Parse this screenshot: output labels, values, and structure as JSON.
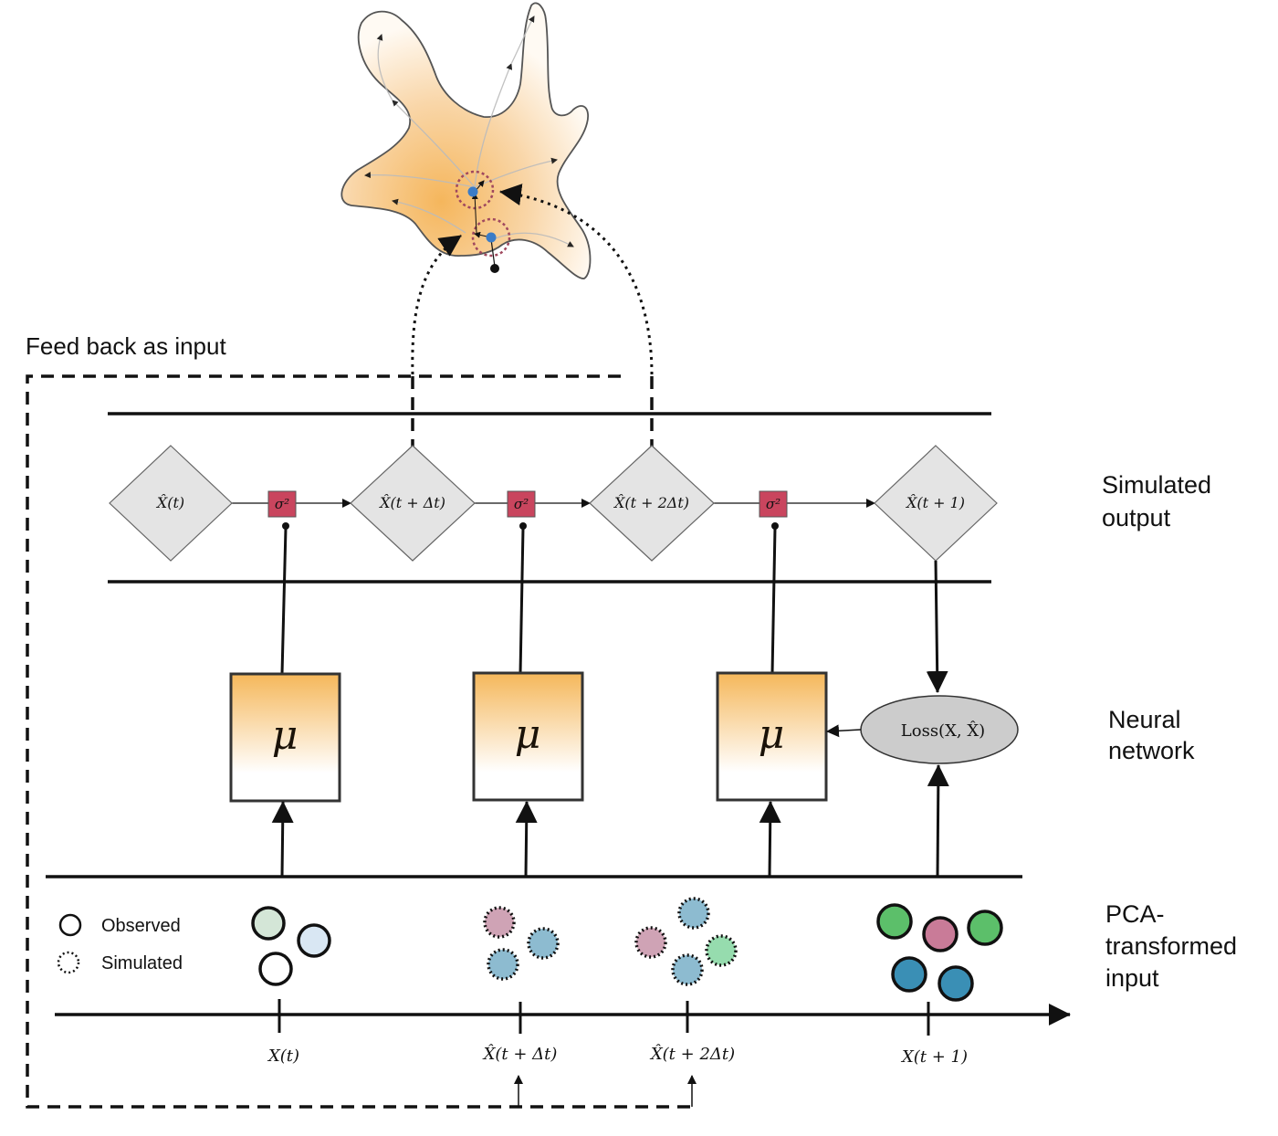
{
  "feedback_label": "Feed back as input",
  "side_labels": {
    "simulated_output": [
      "Simulated",
      "output"
    ],
    "neural_network": [
      "Neural",
      "network"
    ],
    "pca_input": [
      "PCA-",
      "transformed",
      "input"
    ]
  },
  "output_nodes": [
    {
      "label": "X̂(t)"
    },
    {
      "label": "X̂(t + Δt)"
    },
    {
      "label": "X̂(t + 2Δt)"
    },
    {
      "label": "X̂(t + 1)"
    }
  ],
  "noise_label": "σ²",
  "network_label": "μ",
  "loss_label": "Loss(X, X̂)",
  "legend": {
    "observed": "Observed",
    "simulated": "Simulated"
  },
  "axis_ticks": [
    "X(t)",
    "X̂(t + Δt)",
    "X̂(t + 2Δt)",
    "X(t + 1)"
  ],
  "colors": {
    "orange": "#f5b75a",
    "noise_red": "#c9455e",
    "diamond_fill": "#e4e4e4",
    "loss_fill": "#cccccc",
    "green_dark": "#5cbf6a",
    "pink": "#c97b98",
    "blue_dark": "#3a8fb5",
    "blue_light": "#8dbbd0",
    "pink_light": "#cfa3b5",
    "green_light": "#96dcae",
    "green_pale": "#d4e6d7",
    "blue_pale": "#d9e7f3",
    "cell_point": "#3b7cc7"
  }
}
